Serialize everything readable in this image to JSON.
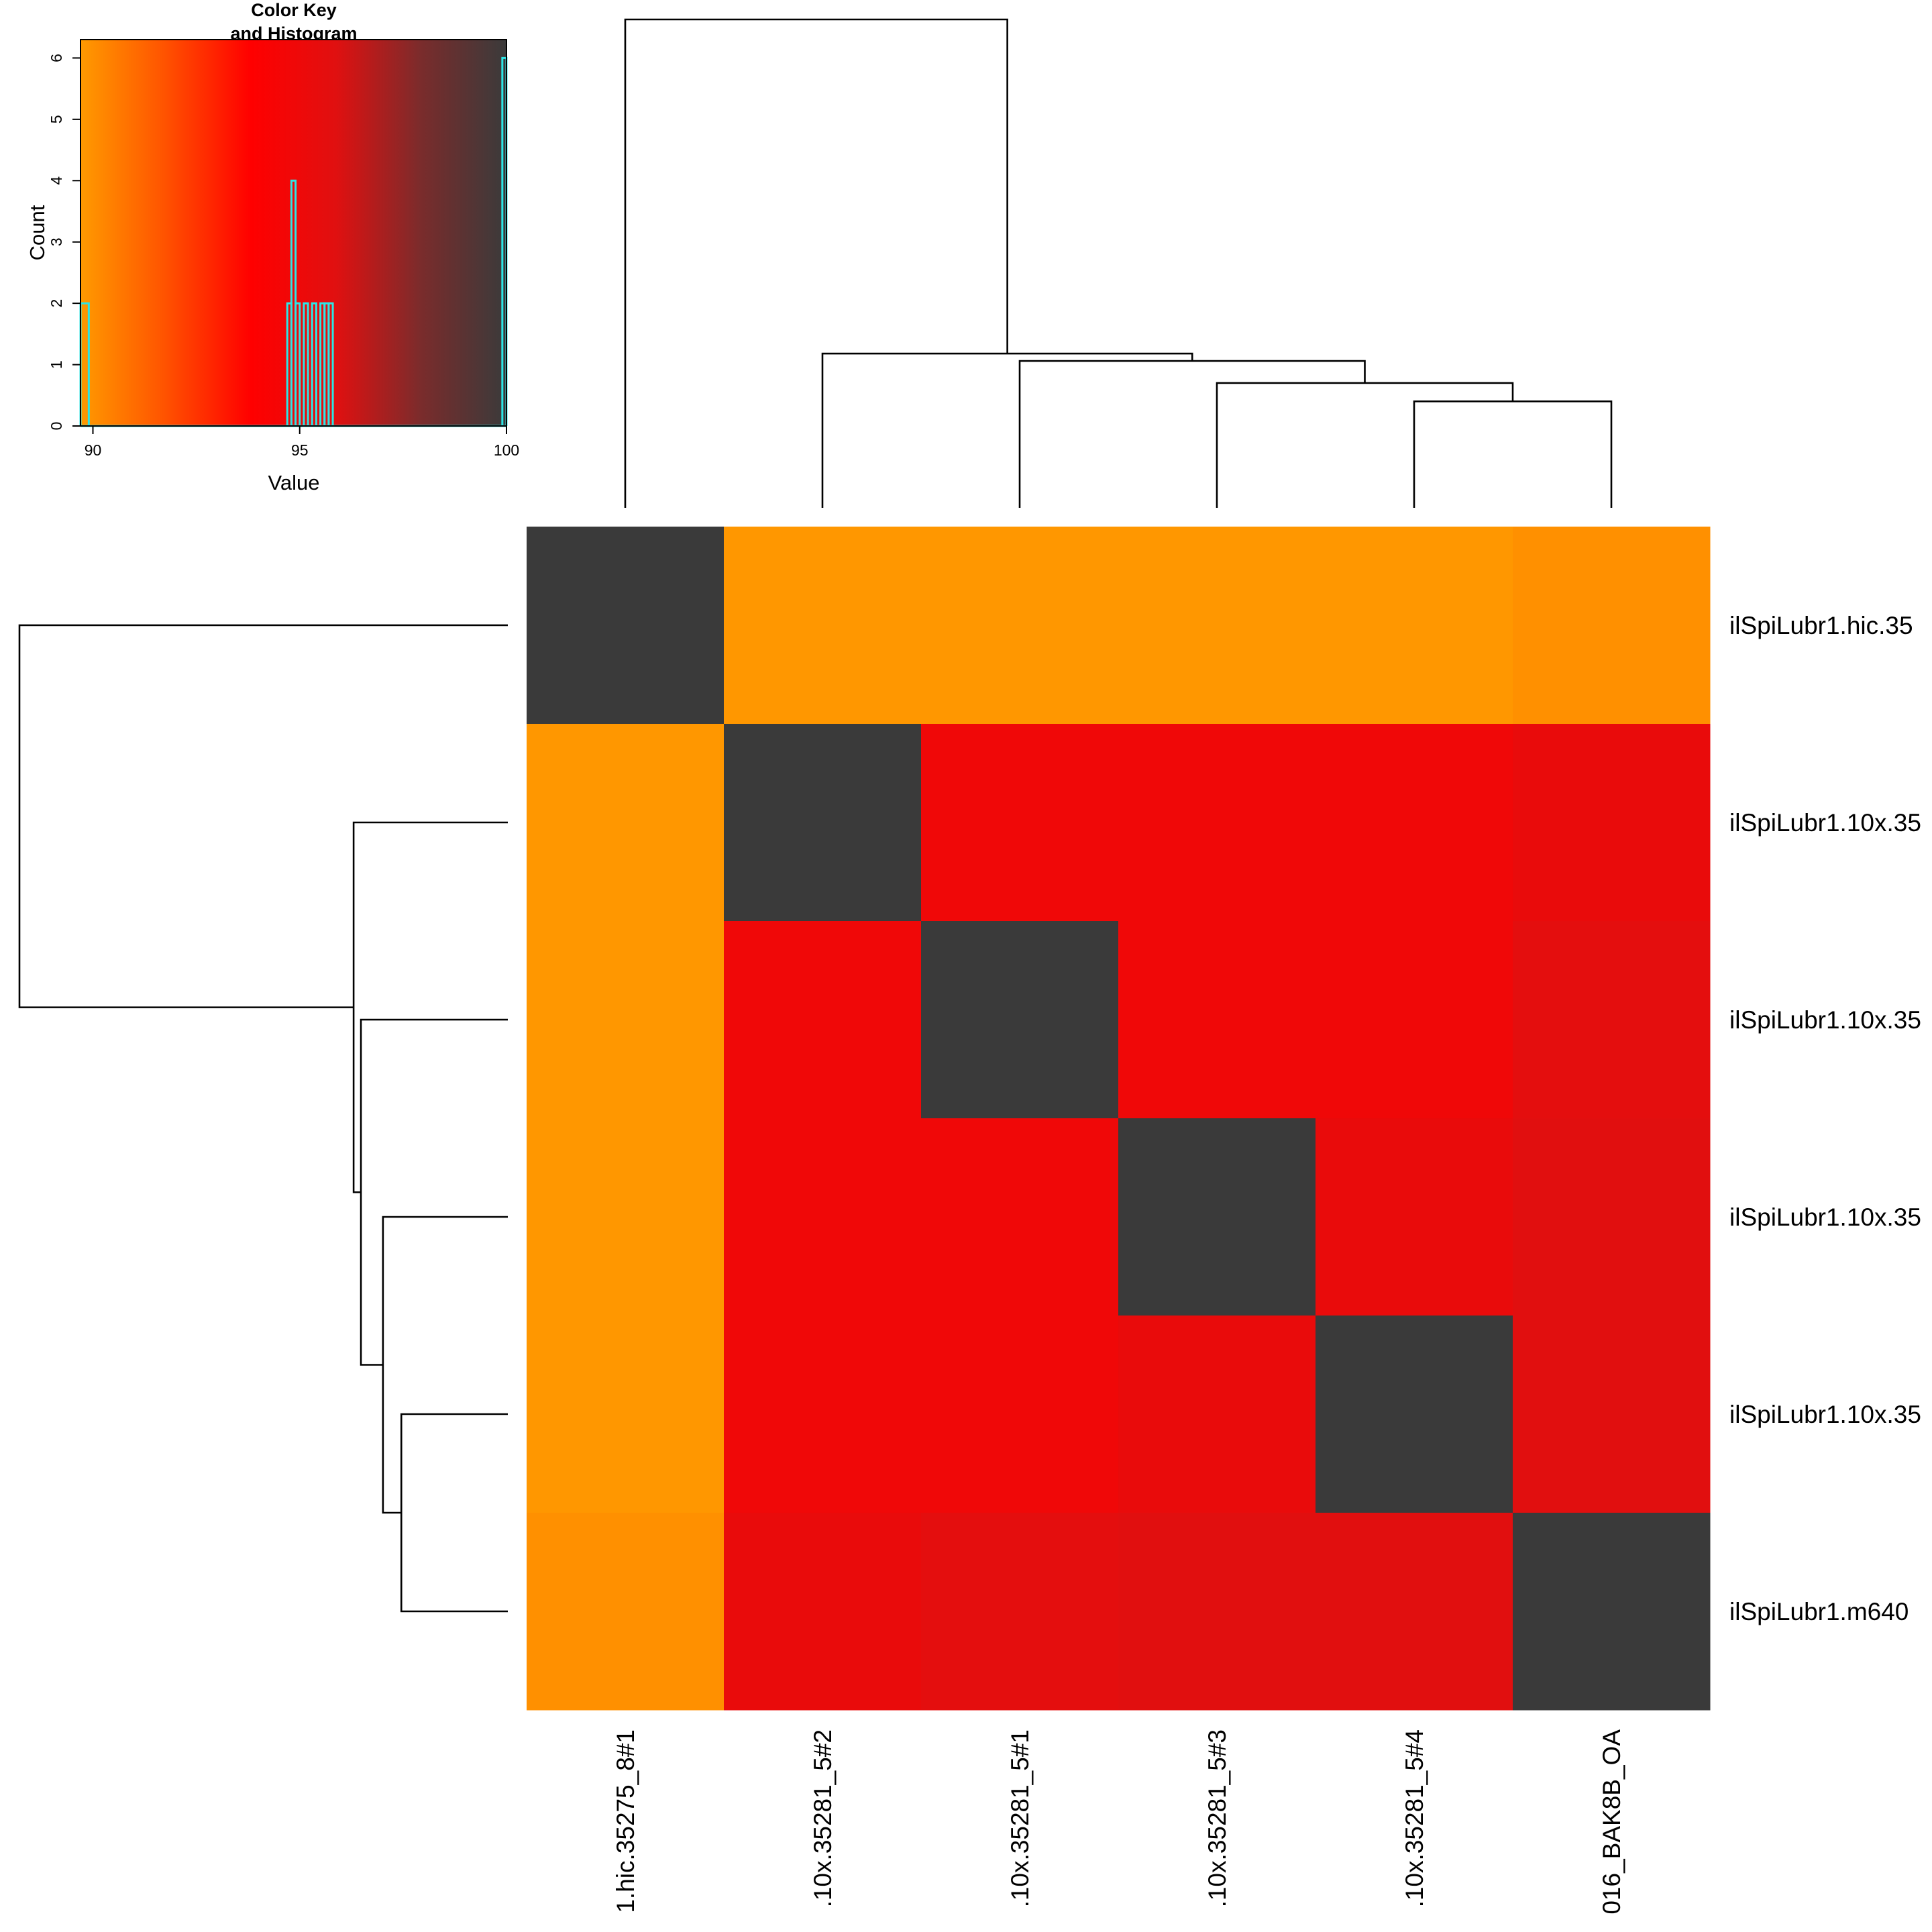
{
  "colors": {
    "scale": [
      "#ff9a00",
      "#ff5200",
      "#ff0000",
      "#e01010",
      "#7a2c2c",
      "#3a3a3a"
    ],
    "histogram": "#2ce6e6",
    "dendrogram": "#000000"
  },
  "chart_data": [
    {
      "type": "heatmap",
      "rows": [
        "ilSpiLubr1.hic.35",
        "ilSpiLubr1.10x.35",
        "ilSpiLubr1.10x.35",
        "ilSpiLubr1.10x.35",
        "ilSpiLubr1.10x.35",
        "ilSpiLubr1.m640"
      ],
      "columns": [
        "1.hic.35275_8#1",
        ".10x.35281_5#2",
        ".10x.35281_5#1",
        ".10x.35281_5#3",
        ".10x.35281_5#4",
        "016_BAK8B_OA"
      ],
      "values": [
        [
          100,
          89.8,
          89.8,
          89.8,
          89.8,
          90.0
        ],
        [
          89.8,
          100,
          94.8,
          94.8,
          94.8,
          95.3
        ],
        [
          89.8,
          94.8,
          100,
          94.8,
          94.8,
          95.6
        ],
        [
          89.8,
          94.8,
          94.8,
          100,
          95.3,
          95.8
        ],
        [
          89.8,
          94.8,
          94.8,
          95.3,
          100,
          95.8
        ],
        [
          90.0,
          95.3,
          95.6,
          95.8,
          95.8,
          100
        ]
      ],
      "value_range": [
        89.7,
        100
      ],
      "column_dendrogram": {
        "merges": [
          [
            5,
            6,
            1.45
          ],
          [
            4,
            7,
            1.7
          ],
          [
            3,
            8,
            2.0
          ],
          [
            2,
            9,
            2.1
          ],
          [
            1,
            10,
            6.65
          ]
        ],
        "max_height": 6.65
      },
      "row_dendrogram": {
        "merges": [
          [
            5,
            6,
            1.45
          ],
          [
            4,
            7,
            1.7
          ],
          [
            3,
            8,
            2.0
          ],
          [
            2,
            9,
            2.1
          ],
          [
            1,
            10,
            6.65
          ]
        ],
        "max_height": 6.65
      }
    },
    {
      "type": "histogram",
      "title_line1": "Color Key",
      "title_line2": "and Histogram",
      "xlabel": "Value",
      "ylabel": "Count",
      "xlim": [
        89.7,
        100
      ],
      "ylim": [
        0,
        6.3
      ],
      "x_ticks": [
        "90",
        "95",
        "100"
      ],
      "x_tick_values": [
        90,
        95,
        100
      ],
      "y_ticks": [
        "0",
        "1",
        "2",
        "3",
        "4",
        "5",
        "6"
      ],
      "y_tick_values": [
        0,
        1,
        2,
        3,
        4,
        5,
        6
      ],
      "bins": [
        {
          "x0": 89.7,
          "x1": 89.9,
          "count": 2
        },
        {
          "x0": 94.7,
          "x1": 94.8,
          "count": 2
        },
        {
          "x0": 94.8,
          "x1": 94.9,
          "count": 4
        },
        {
          "x0": 94.9,
          "x1": 95.0,
          "count": 2
        },
        {
          "x0": 95.0,
          "x1": 95.1,
          "count": 0
        },
        {
          "x0": 95.1,
          "x1": 95.2,
          "count": 2
        },
        {
          "x0": 95.2,
          "x1": 95.3,
          "count": 0
        },
        {
          "x0": 95.3,
          "x1": 95.4,
          "count": 2
        },
        {
          "x0": 95.5,
          "x1": 95.6,
          "count": 2
        },
        {
          "x0": 95.6,
          "x1": 95.7,
          "count": 2
        },
        {
          "x0": 95.7,
          "x1": 95.8,
          "count": 2
        },
        {
          "x0": 99.9,
          "x1": 100,
          "count": 6
        }
      ]
    }
  ]
}
